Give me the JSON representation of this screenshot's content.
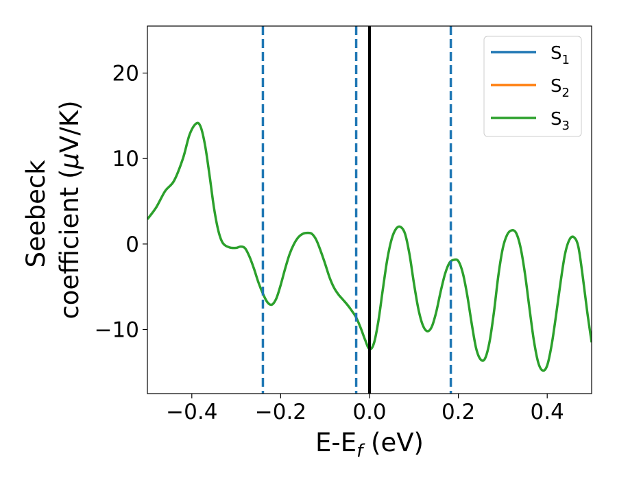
{
  "chart_data": {
    "type": "line",
    "xlabel": {
      "main": "E-E",
      "sub": "f",
      "unit": " (eV)"
    },
    "ylabel": {
      "line1": "Seebeck",
      "line2_pre": "coefficient  (",
      "mu": "μ",
      "line2_post": "V/K)"
    },
    "xlim": [
      -0.5,
      0.5
    ],
    "ylim": [
      -17.5,
      25.5
    ],
    "xticks": [
      {
        "value": -0.4,
        "label": "−0.4"
      },
      {
        "value": -0.2,
        "label": "−0.2"
      },
      {
        "value": 0.0,
        "label": "0.0"
      },
      {
        "value": 0.2,
        "label": "0.2"
      },
      {
        "value": 0.4,
        "label": "0.4"
      }
    ],
    "yticks": [
      {
        "value": -10,
        "label": "−10"
      },
      {
        "value": 0,
        "label": "0"
      },
      {
        "value": 10,
        "label": "10"
      },
      {
        "value": 20,
        "label": "20"
      }
    ],
    "legend": {
      "position": "top-right"
    },
    "series": [
      {
        "name": "S",
        "sub": "1",
        "color": "#1f77b4",
        "visible_curve": false
      },
      {
        "name": "S",
        "sub": "2",
        "color": "#ff7f0e",
        "visible_curve": false
      },
      {
        "name": "S",
        "sub": "3",
        "color": "#2ca02c",
        "visible_curve": true
      }
    ],
    "curve_points": [
      [
        -0.5,
        2.9
      ],
      [
        -0.48,
        4.3
      ],
      [
        -0.46,
        6.2
      ],
      [
        -0.44,
        7.4
      ],
      [
        -0.42,
        10.0
      ],
      [
        -0.405,
        12.8
      ],
      [
        -0.39,
        14.1
      ],
      [
        -0.38,
        13.7
      ],
      [
        -0.37,
        11.5
      ],
      [
        -0.36,
        8.0
      ],
      [
        -0.35,
        4.2
      ],
      [
        -0.34,
        1.5
      ],
      [
        -0.33,
        0.1
      ],
      [
        -0.315,
        -0.4
      ],
      [
        -0.3,
        -0.45
      ],
      [
        -0.29,
        -0.3
      ],
      [
        -0.28,
        -0.5
      ],
      [
        -0.27,
        -1.5
      ],
      [
        -0.26,
        -2.9
      ],
      [
        -0.25,
        -4.5
      ],
      [
        -0.24,
        -5.8
      ],
      [
        -0.23,
        -6.8
      ],
      [
        -0.22,
        -7.1
      ],
      [
        -0.21,
        -6.4
      ],
      [
        -0.2,
        -4.8
      ],
      [
        -0.19,
        -2.9
      ],
      [
        -0.18,
        -1.2
      ],
      [
        -0.17,
        0.0
      ],
      [
        -0.16,
        0.8
      ],
      [
        -0.15,
        1.2
      ],
      [
        -0.14,
        1.3
      ],
      [
        -0.13,
        1.2
      ],
      [
        -0.12,
        0.5
      ],
      [
        -0.11,
        -0.8
      ],
      [
        -0.1,
        -2.3
      ],
      [
        -0.09,
        -3.9
      ],
      [
        -0.08,
        -5.1
      ],
      [
        -0.07,
        -5.9
      ],
      [
        -0.06,
        -6.5
      ],
      [
        -0.05,
        -7.1
      ],
      [
        -0.04,
        -7.8
      ],
      [
        -0.03,
        -8.6
      ],
      [
        -0.02,
        -9.8
      ],
      [
        -0.01,
        -11.2
      ],
      [
        0.0,
        -12.3
      ],
      [
        0.01,
        -11.6
      ],
      [
        0.02,
        -9.0
      ],
      [
        0.03,
        -5.3
      ],
      [
        0.04,
        -1.8
      ],
      [
        0.05,
        0.6
      ],
      [
        0.06,
        1.8
      ],
      [
        0.07,
        2.0
      ],
      [
        0.08,
        1.2
      ],
      [
        0.09,
        -1.2
      ],
      [
        0.1,
        -4.6
      ],
      [
        0.11,
        -7.6
      ],
      [
        0.12,
        -9.5
      ],
      [
        0.13,
        -10.2
      ],
      [
        0.14,
        -9.7
      ],
      [
        0.15,
        -8.0
      ],
      [
        0.16,
        -5.6
      ],
      [
        0.17,
        -3.5
      ],
      [
        0.18,
        -2.2
      ],
      [
        0.19,
        -1.85
      ],
      [
        0.2,
        -2.0
      ],
      [
        0.21,
        -3.4
      ],
      [
        0.22,
        -6.0
      ],
      [
        0.23,
        -9.3
      ],
      [
        0.24,
        -12.2
      ],
      [
        0.25,
        -13.5
      ],
      [
        0.26,
        -13.4
      ],
      [
        0.27,
        -11.5
      ],
      [
        0.28,
        -8.0
      ],
      [
        0.29,
        -3.7
      ],
      [
        0.3,
        -0.5
      ],
      [
        0.31,
        1.1
      ],
      [
        0.32,
        1.6
      ],
      [
        0.33,
        1.3
      ],
      [
        0.34,
        -0.4
      ],
      [
        0.35,
        -3.5
      ],
      [
        0.36,
        -7.5
      ],
      [
        0.37,
        -11.3
      ],
      [
        0.38,
        -13.9
      ],
      [
        0.39,
        -14.8
      ],
      [
        0.4,
        -14.2
      ],
      [
        0.41,
        -11.8
      ],
      [
        0.42,
        -8.3
      ],
      [
        0.43,
        -4.5
      ],
      [
        0.44,
        -1.2
      ],
      [
        0.45,
        0.5
      ],
      [
        0.46,
        0.8
      ],
      [
        0.47,
        -0.3
      ],
      [
        0.48,
        -3.8
      ],
      [
        0.49,
        -7.9
      ],
      [
        0.5,
        -11.5
      ]
    ],
    "vlines": [
      {
        "x": -0.24,
        "style": "dashed",
        "color": "#1f77b4"
      },
      {
        "x": -0.03,
        "style": "dashed",
        "color": "#1f77b4"
      },
      {
        "x": 0.183,
        "style": "dashed",
        "color": "#1f77b4"
      },
      {
        "x": 0.0,
        "style": "solid",
        "color": "#000000"
      }
    ]
  }
}
